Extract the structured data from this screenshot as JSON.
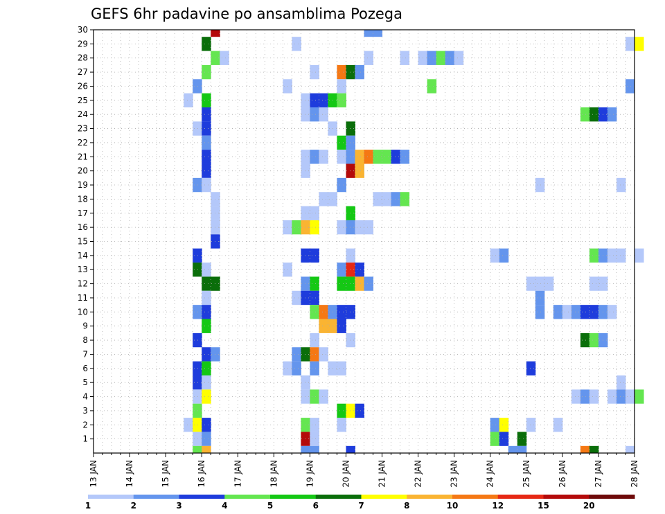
{
  "chart_data": {
    "type": "heatmap",
    "title": "GEFS 6hr padavine po ansamblima Pozega",
    "xlabel": "",
    "ylabel": "",
    "x_tick_labels": [
      "13 JAN",
      "14 JAN",
      "15 JAN",
      "16 JAN",
      "17 JAN",
      "18 JAN",
      "19 JAN",
      "20 JAN",
      "21 JAN",
      "22 JAN",
      "23 JAN",
      "24 JAN",
      "25 JAN",
      "26 JAN",
      "27 JAN",
      "28 JAN"
    ],
    "x_range_days": [
      13,
      28
    ],
    "x_step_days": 0.25,
    "y_tick_labels": [
      "1",
      "2",
      "3",
      "4",
      "5",
      "6",
      "7",
      "8",
      "9",
      "10",
      "11",
      "12",
      "13",
      "14",
      "15",
      "16",
      "17",
      "18",
      "19",
      "20",
      "21",
      "22",
      "23",
      "24",
      "25",
      "26",
      "27",
      "28",
      "29",
      "30"
    ],
    "y_range": [
      0,
      30
    ],
    "grid": true,
    "legend": {
      "placement": "bottom",
      "levels": [
        "1",
        "2",
        "3",
        "4",
        "5",
        "6",
        "7",
        "8",
        "10",
        "12",
        "15",
        "20"
      ],
      "colors": [
        "#b4c8fa",
        "#6495ed",
        "#1e3cdc",
        "#64e650",
        "#14c814",
        "#0a6e0a",
        "#ffff00",
        "#fab432",
        "#f57814",
        "#e62814",
        "#b40a0a",
        "#6e0a0a"
      ]
    },
    "cells": [
      {
        "day": 16.25,
        "member": 30,
        "level": 10
      },
      {
        "day": 20.5,
        "member": 30,
        "level": 1
      },
      {
        "day": 20.75,
        "member": 30,
        "level": 1
      },
      {
        "day": 16.0,
        "member": 29,
        "level": 5
      },
      {
        "day": 18.5,
        "member": 29,
        "level": 0
      },
      {
        "day": 27.75,
        "member": 29,
        "level": 0
      },
      {
        "day": 28.0,
        "member": 29,
        "level": 6
      },
      {
        "day": 16.25,
        "member": 28,
        "level": 3
      },
      {
        "day": 16.5,
        "member": 28,
        "level": 0
      },
      {
        "day": 20.5,
        "member": 28,
        "level": 0
      },
      {
        "day": 21.5,
        "member": 28,
        "level": 0
      },
      {
        "day": 22.0,
        "member": 28,
        "level": 0
      },
      {
        "day": 22.25,
        "member": 28,
        "level": 1
      },
      {
        "day": 22.5,
        "member": 28,
        "level": 3
      },
      {
        "day": 22.75,
        "member": 28,
        "level": 1
      },
      {
        "day": 23.0,
        "member": 28,
        "level": 0
      },
      {
        "day": 16.0,
        "member": 27,
        "level": 3
      },
      {
        "day": 19.0,
        "member": 27,
        "level": 0
      },
      {
        "day": 19.75,
        "member": 27,
        "level": 8
      },
      {
        "day": 20.0,
        "member": 27,
        "level": 5
      },
      {
        "day": 20.25,
        "member": 27,
        "level": 1
      },
      {
        "day": 15.75,
        "member": 26,
        "level": 1
      },
      {
        "day": 18.25,
        "member": 26,
        "level": 0
      },
      {
        "day": 19.75,
        "member": 26,
        "level": 0
      },
      {
        "day": 22.25,
        "member": 26,
        "level": 3
      },
      {
        "day": 27.75,
        "member": 26,
        "level": 1
      },
      {
        "day": 15.5,
        "member": 25,
        "level": 0
      },
      {
        "day": 16.0,
        "member": 25,
        "level": 4
      },
      {
        "day": 18.75,
        "member": 25,
        "level": 0
      },
      {
        "day": 19.0,
        "member": 25,
        "level": 2
      },
      {
        "day": 19.25,
        "member": 25,
        "level": 2
      },
      {
        "day": 19.5,
        "member": 25,
        "level": 4
      },
      {
        "day": 19.75,
        "member": 25,
        "level": 3
      },
      {
        "day": 16.0,
        "member": 24,
        "level": 2
      },
      {
        "day": 18.75,
        "member": 24,
        "level": 0
      },
      {
        "day": 19.0,
        "member": 24,
        "level": 1
      },
      {
        "day": 19.25,
        "member": 24,
        "level": 0
      },
      {
        "day": 26.5,
        "member": 24,
        "level": 3
      },
      {
        "day": 26.75,
        "member": 24,
        "level": 5
      },
      {
        "day": 27.0,
        "member": 24,
        "level": 2
      },
      {
        "day": 27.25,
        "member": 24,
        "level": 1
      },
      {
        "day": 15.75,
        "member": 23,
        "level": 0
      },
      {
        "day": 16.0,
        "member": 23,
        "level": 2
      },
      {
        "day": 19.5,
        "member": 23,
        "level": 0
      },
      {
        "day": 20.0,
        "member": 23,
        "level": 5
      },
      {
        "day": 16.0,
        "member": 22,
        "level": 1
      },
      {
        "day": 19.75,
        "member": 22,
        "level": 4
      },
      {
        "day": 20.0,
        "member": 22,
        "level": 1
      },
      {
        "day": 16.0,
        "member": 21,
        "level": 2
      },
      {
        "day": 18.75,
        "member": 21,
        "level": 0
      },
      {
        "day": 19.0,
        "member": 21,
        "level": 1
      },
      {
        "day": 19.25,
        "member": 21,
        "level": 0
      },
      {
        "day": 19.75,
        "member": 21,
        "level": 0
      },
      {
        "day": 20.0,
        "member": 21,
        "level": 1
      },
      {
        "day": 20.25,
        "member": 21,
        "level": 7
      },
      {
        "day": 20.5,
        "member": 21,
        "level": 8
      },
      {
        "day": 20.75,
        "member": 21,
        "level": 3
      },
      {
        "day": 21.0,
        "member": 21,
        "level": 3
      },
      {
        "day": 21.25,
        "member": 21,
        "level": 2
      },
      {
        "day": 21.5,
        "member": 21,
        "level": 1
      },
      {
        "day": 16.0,
        "member": 20,
        "level": 2
      },
      {
        "day": 18.75,
        "member": 20,
        "level": 0
      },
      {
        "day": 20.0,
        "member": 20,
        "level": 10
      },
      {
        "day": 20.25,
        "member": 20,
        "level": 7
      },
      {
        "day": 15.75,
        "member": 19,
        "level": 1
      },
      {
        "day": 16.0,
        "member": 19,
        "level": 0
      },
      {
        "day": 19.75,
        "member": 19,
        "level": 1
      },
      {
        "day": 25.25,
        "member": 19,
        "level": 0
      },
      {
        "day": 27.5,
        "member": 19,
        "level": 0
      },
      {
        "day": 16.25,
        "member": 18,
        "level": 0
      },
      {
        "day": 19.25,
        "member": 18,
        "level": 0
      },
      {
        "day": 19.5,
        "member": 18,
        "level": 0
      },
      {
        "day": 20.75,
        "member": 18,
        "level": 0
      },
      {
        "day": 21.0,
        "member": 18,
        "level": 0
      },
      {
        "day": 21.25,
        "member": 18,
        "level": 1
      },
      {
        "day": 21.5,
        "member": 18,
        "level": 3
      },
      {
        "day": 16.25,
        "member": 17,
        "level": 0
      },
      {
        "day": 18.75,
        "member": 17,
        "level": 0
      },
      {
        "day": 19.0,
        "member": 17,
        "level": 0
      },
      {
        "day": 20.0,
        "member": 17,
        "level": 4
      },
      {
        "day": 16.25,
        "member": 16,
        "level": 0
      },
      {
        "day": 18.25,
        "member": 16,
        "level": 0
      },
      {
        "day": 18.5,
        "member": 16,
        "level": 3
      },
      {
        "day": 18.75,
        "member": 16,
        "level": 7
      },
      {
        "day": 19.0,
        "member": 16,
        "level": 6
      },
      {
        "day": 19.75,
        "member": 16,
        "level": 0
      },
      {
        "day": 20.0,
        "member": 16,
        "level": 1
      },
      {
        "day": 20.25,
        "member": 16,
        "level": 0
      },
      {
        "day": 20.5,
        "member": 16,
        "level": 0
      },
      {
        "day": 16.25,
        "member": 15,
        "level": 2
      },
      {
        "day": 15.75,
        "member": 14,
        "level": 2
      },
      {
        "day": 18.75,
        "member": 14,
        "level": 2
      },
      {
        "day": 19.0,
        "member": 14,
        "level": 2
      },
      {
        "day": 20.0,
        "member": 14,
        "level": 0
      },
      {
        "day": 24.0,
        "member": 14,
        "level": 0
      },
      {
        "day": 24.25,
        "member": 14,
        "level": 1
      },
      {
        "day": 26.75,
        "member": 14,
        "level": 3
      },
      {
        "day": 27.0,
        "member": 14,
        "level": 1
      },
      {
        "day": 27.25,
        "member": 14,
        "level": 0
      },
      {
        "day": 27.5,
        "member": 14,
        "level": 0
      },
      {
        "day": 28.0,
        "member": 14,
        "level": 0
      },
      {
        "day": 15.75,
        "member": 13,
        "level": 5
      },
      {
        "day": 16.0,
        "member": 13,
        "level": 0
      },
      {
        "day": 18.25,
        "member": 13,
        "level": 0
      },
      {
        "day": 19.75,
        "member": 13,
        "level": 1
      },
      {
        "day": 20.0,
        "member": 13,
        "level": 9
      },
      {
        "day": 20.25,
        "member": 13,
        "level": 2
      },
      {
        "day": 16.0,
        "member": 12,
        "level": 5
      },
      {
        "day": 16.25,
        "member": 12,
        "level": 5
      },
      {
        "day": 18.75,
        "member": 12,
        "level": 1
      },
      {
        "day": 19.0,
        "member": 12,
        "level": 4
      },
      {
        "day": 19.75,
        "member": 12,
        "level": 4
      },
      {
        "day": 20.0,
        "member": 12,
        "level": 4
      },
      {
        "day": 20.25,
        "member": 12,
        "level": 7
      },
      {
        "day": 20.5,
        "member": 12,
        "level": 1
      },
      {
        "day": 25.0,
        "member": 12,
        "level": 0
      },
      {
        "day": 25.25,
        "member": 12,
        "level": 0
      },
      {
        "day": 25.5,
        "member": 12,
        "level": 0
      },
      {
        "day": 26.75,
        "member": 12,
        "level": 0
      },
      {
        "day": 27.0,
        "member": 12,
        "level": 0
      },
      {
        "day": 16.0,
        "member": 11,
        "level": 0
      },
      {
        "day": 18.5,
        "member": 11,
        "level": 0
      },
      {
        "day": 18.75,
        "member": 11,
        "level": 2
      },
      {
        "day": 19.0,
        "member": 11,
        "level": 2
      },
      {
        "day": 25.25,
        "member": 11,
        "level": 1
      },
      {
        "day": 15.75,
        "member": 10,
        "level": 1
      },
      {
        "day": 16.0,
        "member": 10,
        "level": 2
      },
      {
        "day": 19.0,
        "member": 10,
        "level": 3
      },
      {
        "day": 19.25,
        "member": 10,
        "level": 8
      },
      {
        "day": 19.5,
        "member": 10,
        "level": 1
      },
      {
        "day": 19.75,
        "member": 10,
        "level": 2
      },
      {
        "day": 20.0,
        "member": 10,
        "level": 2
      },
      {
        "day": 25.25,
        "member": 10,
        "level": 1
      },
      {
        "day": 25.75,
        "member": 10,
        "level": 1
      },
      {
        "day": 26.0,
        "member": 10,
        "level": 0
      },
      {
        "day": 26.25,
        "member": 10,
        "level": 1
      },
      {
        "day": 26.5,
        "member": 10,
        "level": 2
      },
      {
        "day": 26.75,
        "member": 10,
        "level": 2
      },
      {
        "day": 27.0,
        "member": 10,
        "level": 1
      },
      {
        "day": 27.25,
        "member": 10,
        "level": 0
      },
      {
        "day": 16.0,
        "member": 9,
        "level": 4
      },
      {
        "day": 19.25,
        "member": 9,
        "level": 7
      },
      {
        "day": 19.5,
        "member": 9,
        "level": 7
      },
      {
        "day": 19.75,
        "member": 9,
        "level": 2
      },
      {
        "day": 15.75,
        "member": 8,
        "level": 2
      },
      {
        "day": 19.0,
        "member": 8,
        "level": 0
      },
      {
        "day": 20.0,
        "member": 8,
        "level": 0
      },
      {
        "day": 26.5,
        "member": 8,
        "level": 5
      },
      {
        "day": 26.75,
        "member": 8,
        "level": 3
      },
      {
        "day": 27.0,
        "member": 8,
        "level": 1
      },
      {
        "day": 16.0,
        "member": 7,
        "level": 2
      },
      {
        "day": 16.25,
        "member": 7,
        "level": 1
      },
      {
        "day": 18.5,
        "member": 7,
        "level": 1
      },
      {
        "day": 18.75,
        "member": 7,
        "level": 5
      },
      {
        "day": 19.0,
        "member": 7,
        "level": 8
      },
      {
        "day": 19.25,
        "member": 7,
        "level": 0
      },
      {
        "day": 15.75,
        "member": 6,
        "level": 2
      },
      {
        "day": 16.0,
        "member": 6,
        "level": 4
      },
      {
        "day": 18.25,
        "member": 6,
        "level": 0
      },
      {
        "day": 18.5,
        "member": 6,
        "level": 1
      },
      {
        "day": 19.0,
        "member": 6,
        "level": 1
      },
      {
        "day": 19.5,
        "member": 6,
        "level": 0
      },
      {
        "day": 19.75,
        "member": 6,
        "level": 0
      },
      {
        "day": 25.0,
        "member": 6,
        "level": 2
      },
      {
        "day": 15.75,
        "member": 5,
        "level": 2
      },
      {
        "day": 16.0,
        "member": 5,
        "level": 0
      },
      {
        "day": 18.75,
        "member": 5,
        "level": 0
      },
      {
        "day": 27.5,
        "member": 5,
        "level": 0
      },
      {
        "day": 15.75,
        "member": 4,
        "level": 0
      },
      {
        "day": 16.0,
        "member": 4,
        "level": 6
      },
      {
        "day": 18.75,
        "member": 4,
        "level": 0
      },
      {
        "day": 19.0,
        "member": 4,
        "level": 3
      },
      {
        "day": 19.25,
        "member": 4,
        "level": 0
      },
      {
        "day": 26.25,
        "member": 4,
        "level": 0
      },
      {
        "day": 26.5,
        "member": 4,
        "level": 1
      },
      {
        "day": 26.75,
        "member": 4,
        "level": 0
      },
      {
        "day": 27.25,
        "member": 4,
        "level": 0
      },
      {
        "day": 27.5,
        "member": 4,
        "level": 1
      },
      {
        "day": 27.75,
        "member": 4,
        "level": 0
      },
      {
        "day": 28.0,
        "member": 4,
        "level": 3
      },
      {
        "day": 15.75,
        "member": 3,
        "level": 3
      },
      {
        "day": 19.75,
        "member": 3,
        "level": 4
      },
      {
        "day": 20.0,
        "member": 3,
        "level": 6
      },
      {
        "day": 20.25,
        "member": 3,
        "level": 2
      },
      {
        "day": 15.5,
        "member": 2,
        "level": 0
      },
      {
        "day": 15.75,
        "member": 2,
        "level": 6
      },
      {
        "day": 16.0,
        "member": 2,
        "level": 2
      },
      {
        "day": 18.75,
        "member": 2,
        "level": 3
      },
      {
        "day": 19.0,
        "member": 2,
        "level": 0
      },
      {
        "day": 19.75,
        "member": 2,
        "level": 0
      },
      {
        "day": 24.0,
        "member": 2,
        "level": 1
      },
      {
        "day": 24.25,
        "member": 2,
        "level": 6
      },
      {
        "day": 25.0,
        "member": 2,
        "level": 0
      },
      {
        "day": 25.75,
        "member": 2,
        "level": 0
      },
      {
        "day": 15.75,
        "member": 1,
        "level": 0
      },
      {
        "day": 16.0,
        "member": 1,
        "level": 1
      },
      {
        "day": 18.75,
        "member": 1,
        "level": 10
      },
      {
        "day": 19.0,
        "member": 1,
        "level": 0
      },
      {
        "day": 24.0,
        "member": 1,
        "level": 3
      },
      {
        "day": 24.25,
        "member": 1,
        "level": 2
      },
      {
        "day": 24.75,
        "member": 1,
        "level": 5
      },
      {
        "day": 15.75,
        "member": 0,
        "level": 3
      },
      {
        "day": 16.0,
        "member": 0,
        "level": 7
      },
      {
        "day": 18.75,
        "member": 0,
        "level": 1
      },
      {
        "day": 19.0,
        "member": 0,
        "level": 1
      },
      {
        "day": 20.0,
        "member": 0,
        "level": 2
      },
      {
        "day": 24.5,
        "member": 0,
        "level": 1
      },
      {
        "day": 24.75,
        "member": 0,
        "level": 1
      },
      {
        "day": 26.5,
        "member": 0,
        "level": 8
      },
      {
        "day": 26.75,
        "member": 0,
        "level": 5
      },
      {
        "day": 27.75,
        "member": 0,
        "level": 0
      }
    ]
  }
}
